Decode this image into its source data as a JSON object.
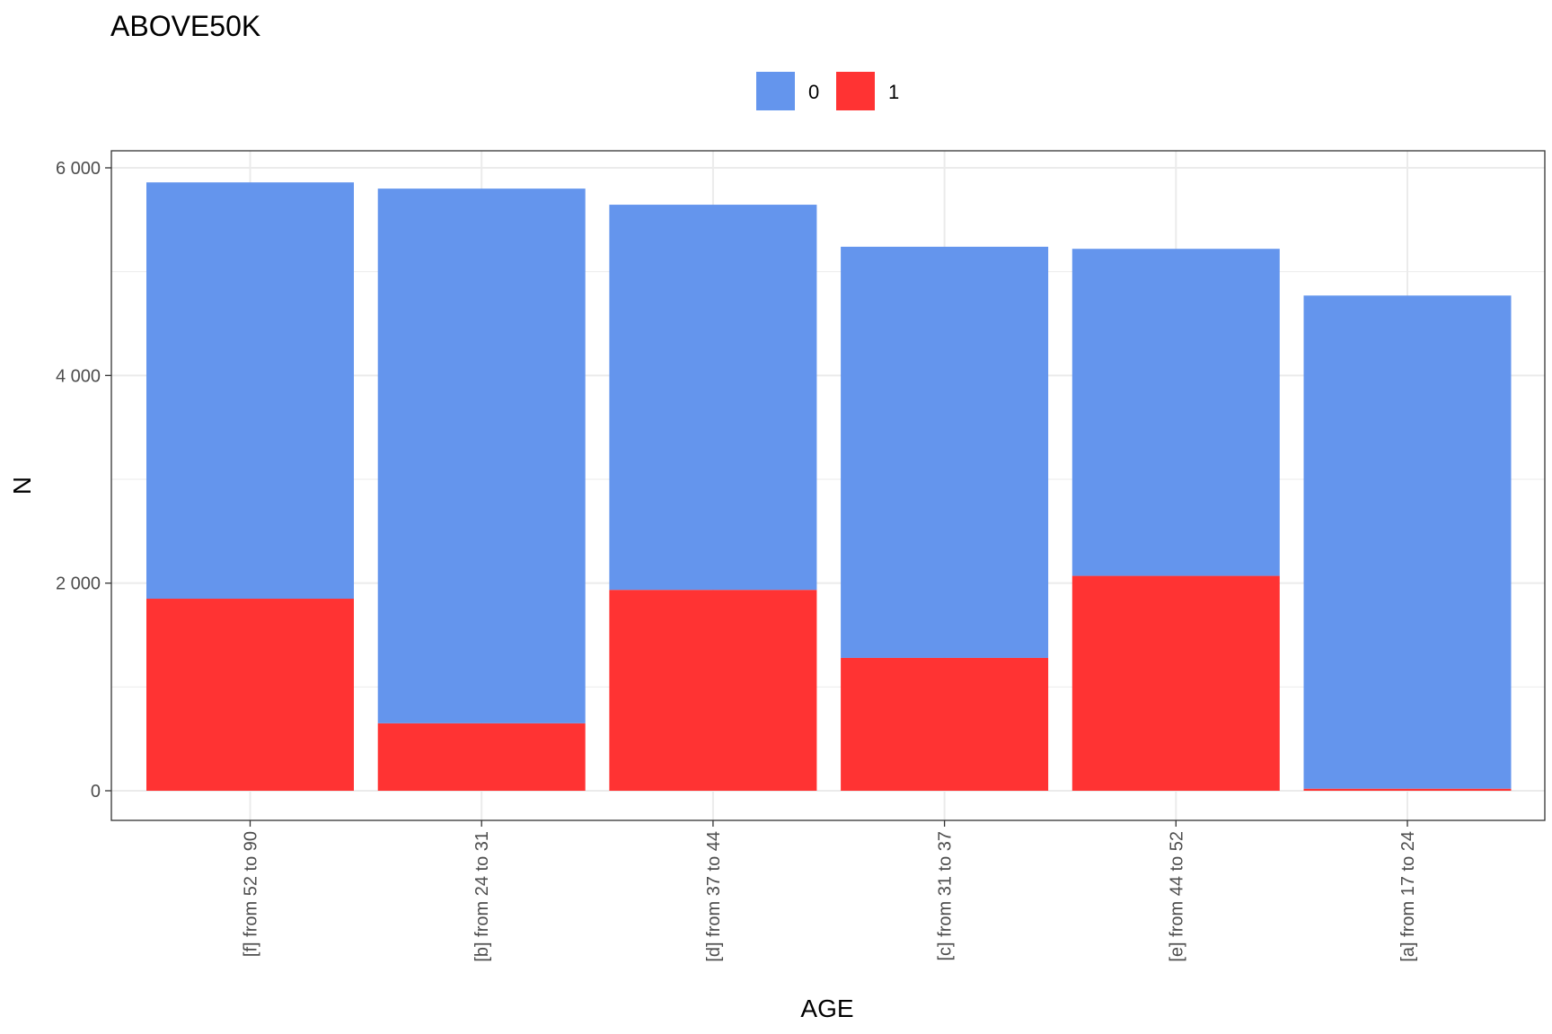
{
  "chart_data": {
    "type": "bar",
    "stacked": true,
    "title": "ABOVE50K",
    "xlabel": "AGE",
    "ylabel": "N",
    "categories": [
      "[f] from 52 to 90",
      "[b] from 24 to 31",
      "[d] from 37 to 44",
      "[c] from 31 to 37",
      "[e] from 44 to 52",
      "[a] from 17 to 24"
    ],
    "series": [
      {
        "name": "1",
        "color": "#ff3333",
        "values": [
          1850,
          650,
          1935,
          1280,
          2070,
          20
        ]
      },
      {
        "name": "0",
        "color": "#6495ed",
        "values": [
          4010,
          5150,
          3710,
          3960,
          3150,
          4750
        ]
      }
    ],
    "legend_order": [
      "0",
      "1"
    ],
    "ylim": [
      0,
      6000
    ],
    "yticks": [
      0,
      2000,
      4000,
      6000
    ],
    "ytick_labels": [
      "0",
      "2 000",
      "4 000",
      "6 000"
    ],
    "legend_position": "top",
    "grid": true,
    "theme": "bw"
  }
}
